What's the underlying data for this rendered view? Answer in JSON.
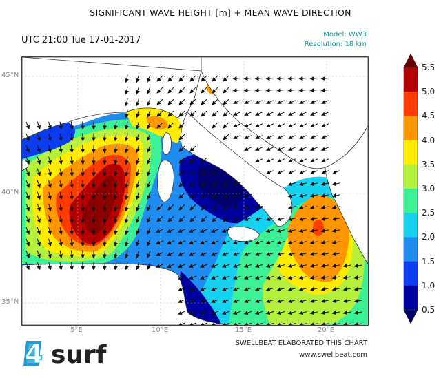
{
  "title": "SIGNIFICANT WAVE HEIGHT [m] + MEAN WAVE DIRECTION",
  "datetime": "UTC 21:00 Tue 17-01-2017",
  "model": "Model: WW3",
  "resolution": "Resolution: 18 km",
  "lat_labels": [
    "45°N",
    "40°N",
    "35°N"
  ],
  "lon_labels": [
    "5°E",
    "10°E",
    "15°E",
    "20°E"
  ],
  "colorbar": {
    "ticks": [
      "5.5",
      "5.0",
      "4.5",
      "4.0",
      "3.5",
      "3.0",
      "2.5",
      "2.0",
      "1.5",
      "1.0",
      "0.5"
    ],
    "colors": [
      "#6b0000",
      "#b40000",
      "#ff3c00",
      "#ff9600",
      "#ffec00",
      "#b4f03c",
      "#3cf096",
      "#14d2f0",
      "#1e8cf0",
      "#0a3cf0",
      "#0000a0",
      "#00006e"
    ]
  },
  "credit_line1": "SWELLBEAT ELABORATED THIS CHART",
  "credit_line2": "www.swellbeat.com",
  "logo_text": "4surf"
}
